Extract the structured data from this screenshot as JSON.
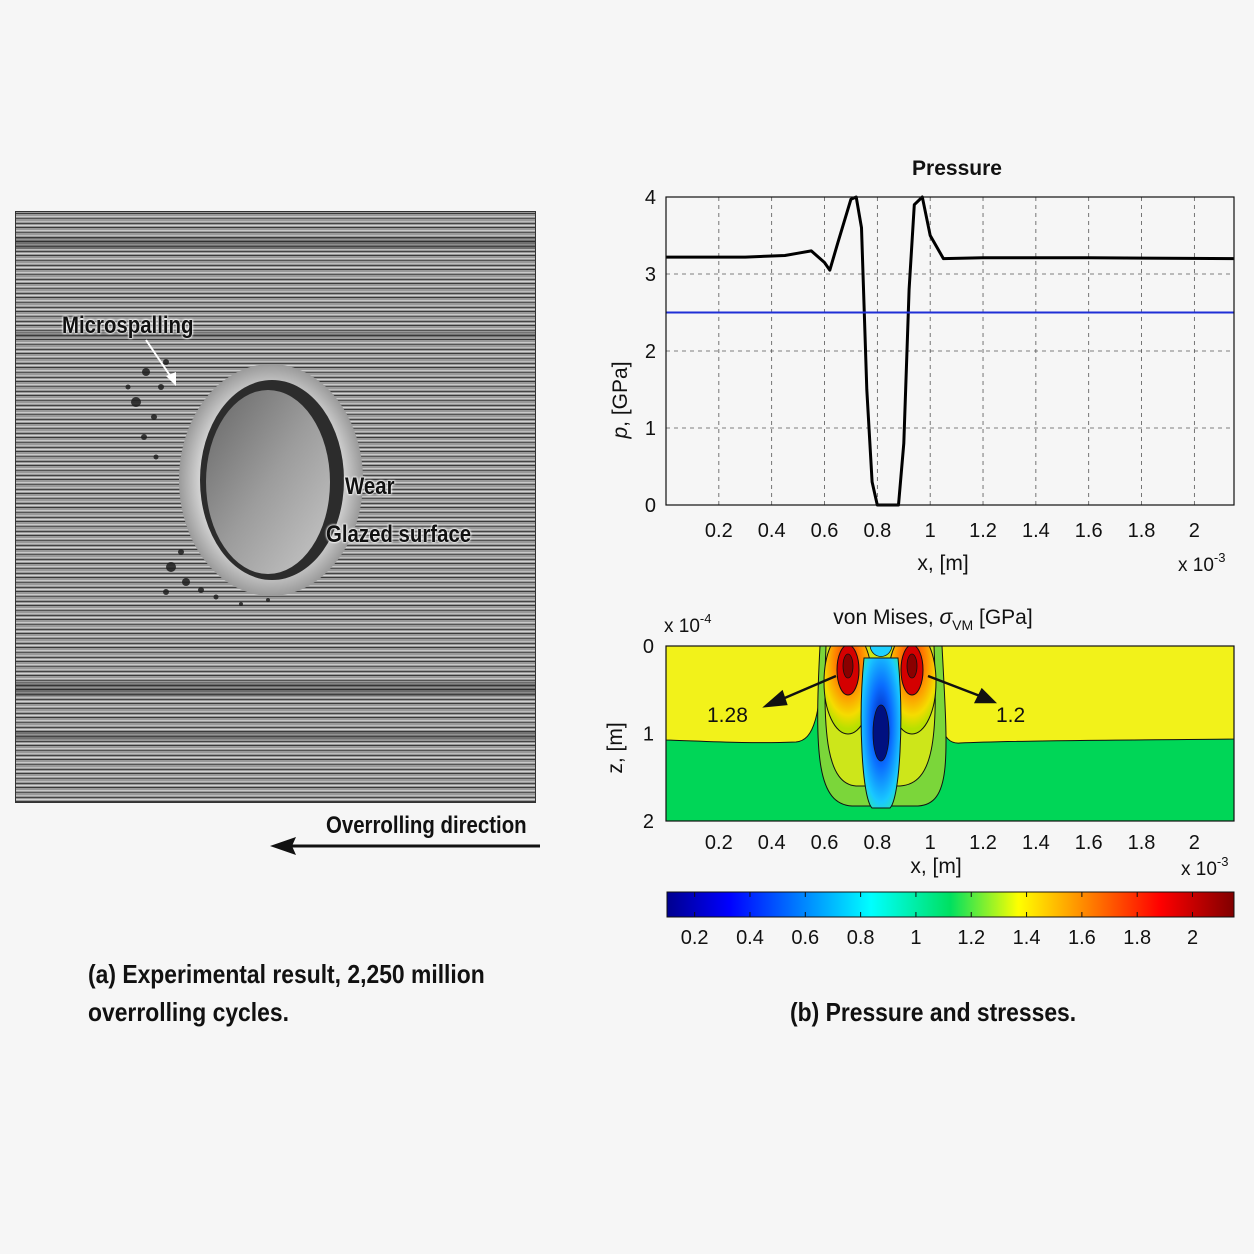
{
  "panel_a": {
    "labels": {
      "microspalling": "Microspalling",
      "wear": "Wear",
      "glazed_surface": "Glazed surface",
      "overrolling_direction": "Overrolling direction"
    },
    "caption_line1": "(a) Experimental result, 2,250 million",
    "caption_line2": "overrolling cycles."
  },
  "panel_b": {
    "caption": "(b) Pressure and stresses."
  },
  "chart_data": [
    {
      "type": "line",
      "title": "Pressure",
      "xlabel": "x, [m]",
      "ylabel_var": "p",
      "ylabel_unit": ", [GPa]",
      "x_multiplier_base": "x 10",
      "x_multiplier_exp": "-3",
      "xlim": [
        0,
        2.15
      ],
      "ylim": [
        0,
        4
      ],
      "x_ticks": [
        0.2,
        0.4,
        0.6,
        0.8,
        1,
        1.2,
        1.4,
        1.6,
        1.8,
        2
      ],
      "y_ticks": [
        0,
        1,
        2,
        3,
        4
      ],
      "grid": true,
      "series": [
        {
          "color": "#000000",
          "x": [
            0.0,
            0.3,
            0.45,
            0.5,
            0.55,
            0.6,
            0.62,
            0.65,
            0.7,
            0.72,
            0.74,
            0.76,
            0.78,
            0.8,
            0.84,
            0.88,
            0.9,
            0.92,
            0.94,
            0.97,
            1.0,
            1.05,
            1.2,
            1.6,
            2.15
          ],
          "y": [
            3.22,
            3.22,
            3.24,
            3.27,
            3.3,
            3.15,
            3.05,
            3.4,
            3.97,
            4.0,
            3.6,
            1.5,
            0.3,
            0.0,
            0.0,
            0.0,
            0.8,
            2.8,
            3.9,
            4.0,
            3.5,
            3.2,
            3.21,
            3.21,
            3.2
          ]
        },
        {
          "color": "#1f2fd6",
          "x": [
            0.0,
            2.15
          ],
          "y": [
            2.5,
            2.5
          ]
        }
      ]
    },
    {
      "type": "heatmap",
      "title_prefix": "von Mises, ",
      "title_symbol": "σ",
      "title_sub": "VM",
      "title_unit": " [GPa]",
      "xlabel": "x, [m]",
      "ylabel": "z, [m]",
      "x_multiplier_base": "x 10",
      "x_multiplier_exp": "-3",
      "y_multiplier_base": "x 10",
      "y_multiplier_exp": "-4",
      "xlim": [
        0,
        2.15
      ],
      "ylim": [
        0,
        2
      ],
      "x_ticks": [
        0.2,
        0.4,
        0.6,
        0.8,
        1,
        1.2,
        1.4,
        1.6,
        1.8,
        2
      ],
      "y_ticks": [
        0,
        1,
        2
      ],
      "annotations": [
        "1.28",
        "1.2"
      ],
      "colorbar_ticks": [
        0.2,
        0.4,
        0.6,
        0.8,
        1,
        1.2,
        1.4,
        1.6,
        1.8,
        2
      ],
      "colorbar_range": [
        0.1,
        2.15
      ],
      "colormap": "jet"
    }
  ]
}
